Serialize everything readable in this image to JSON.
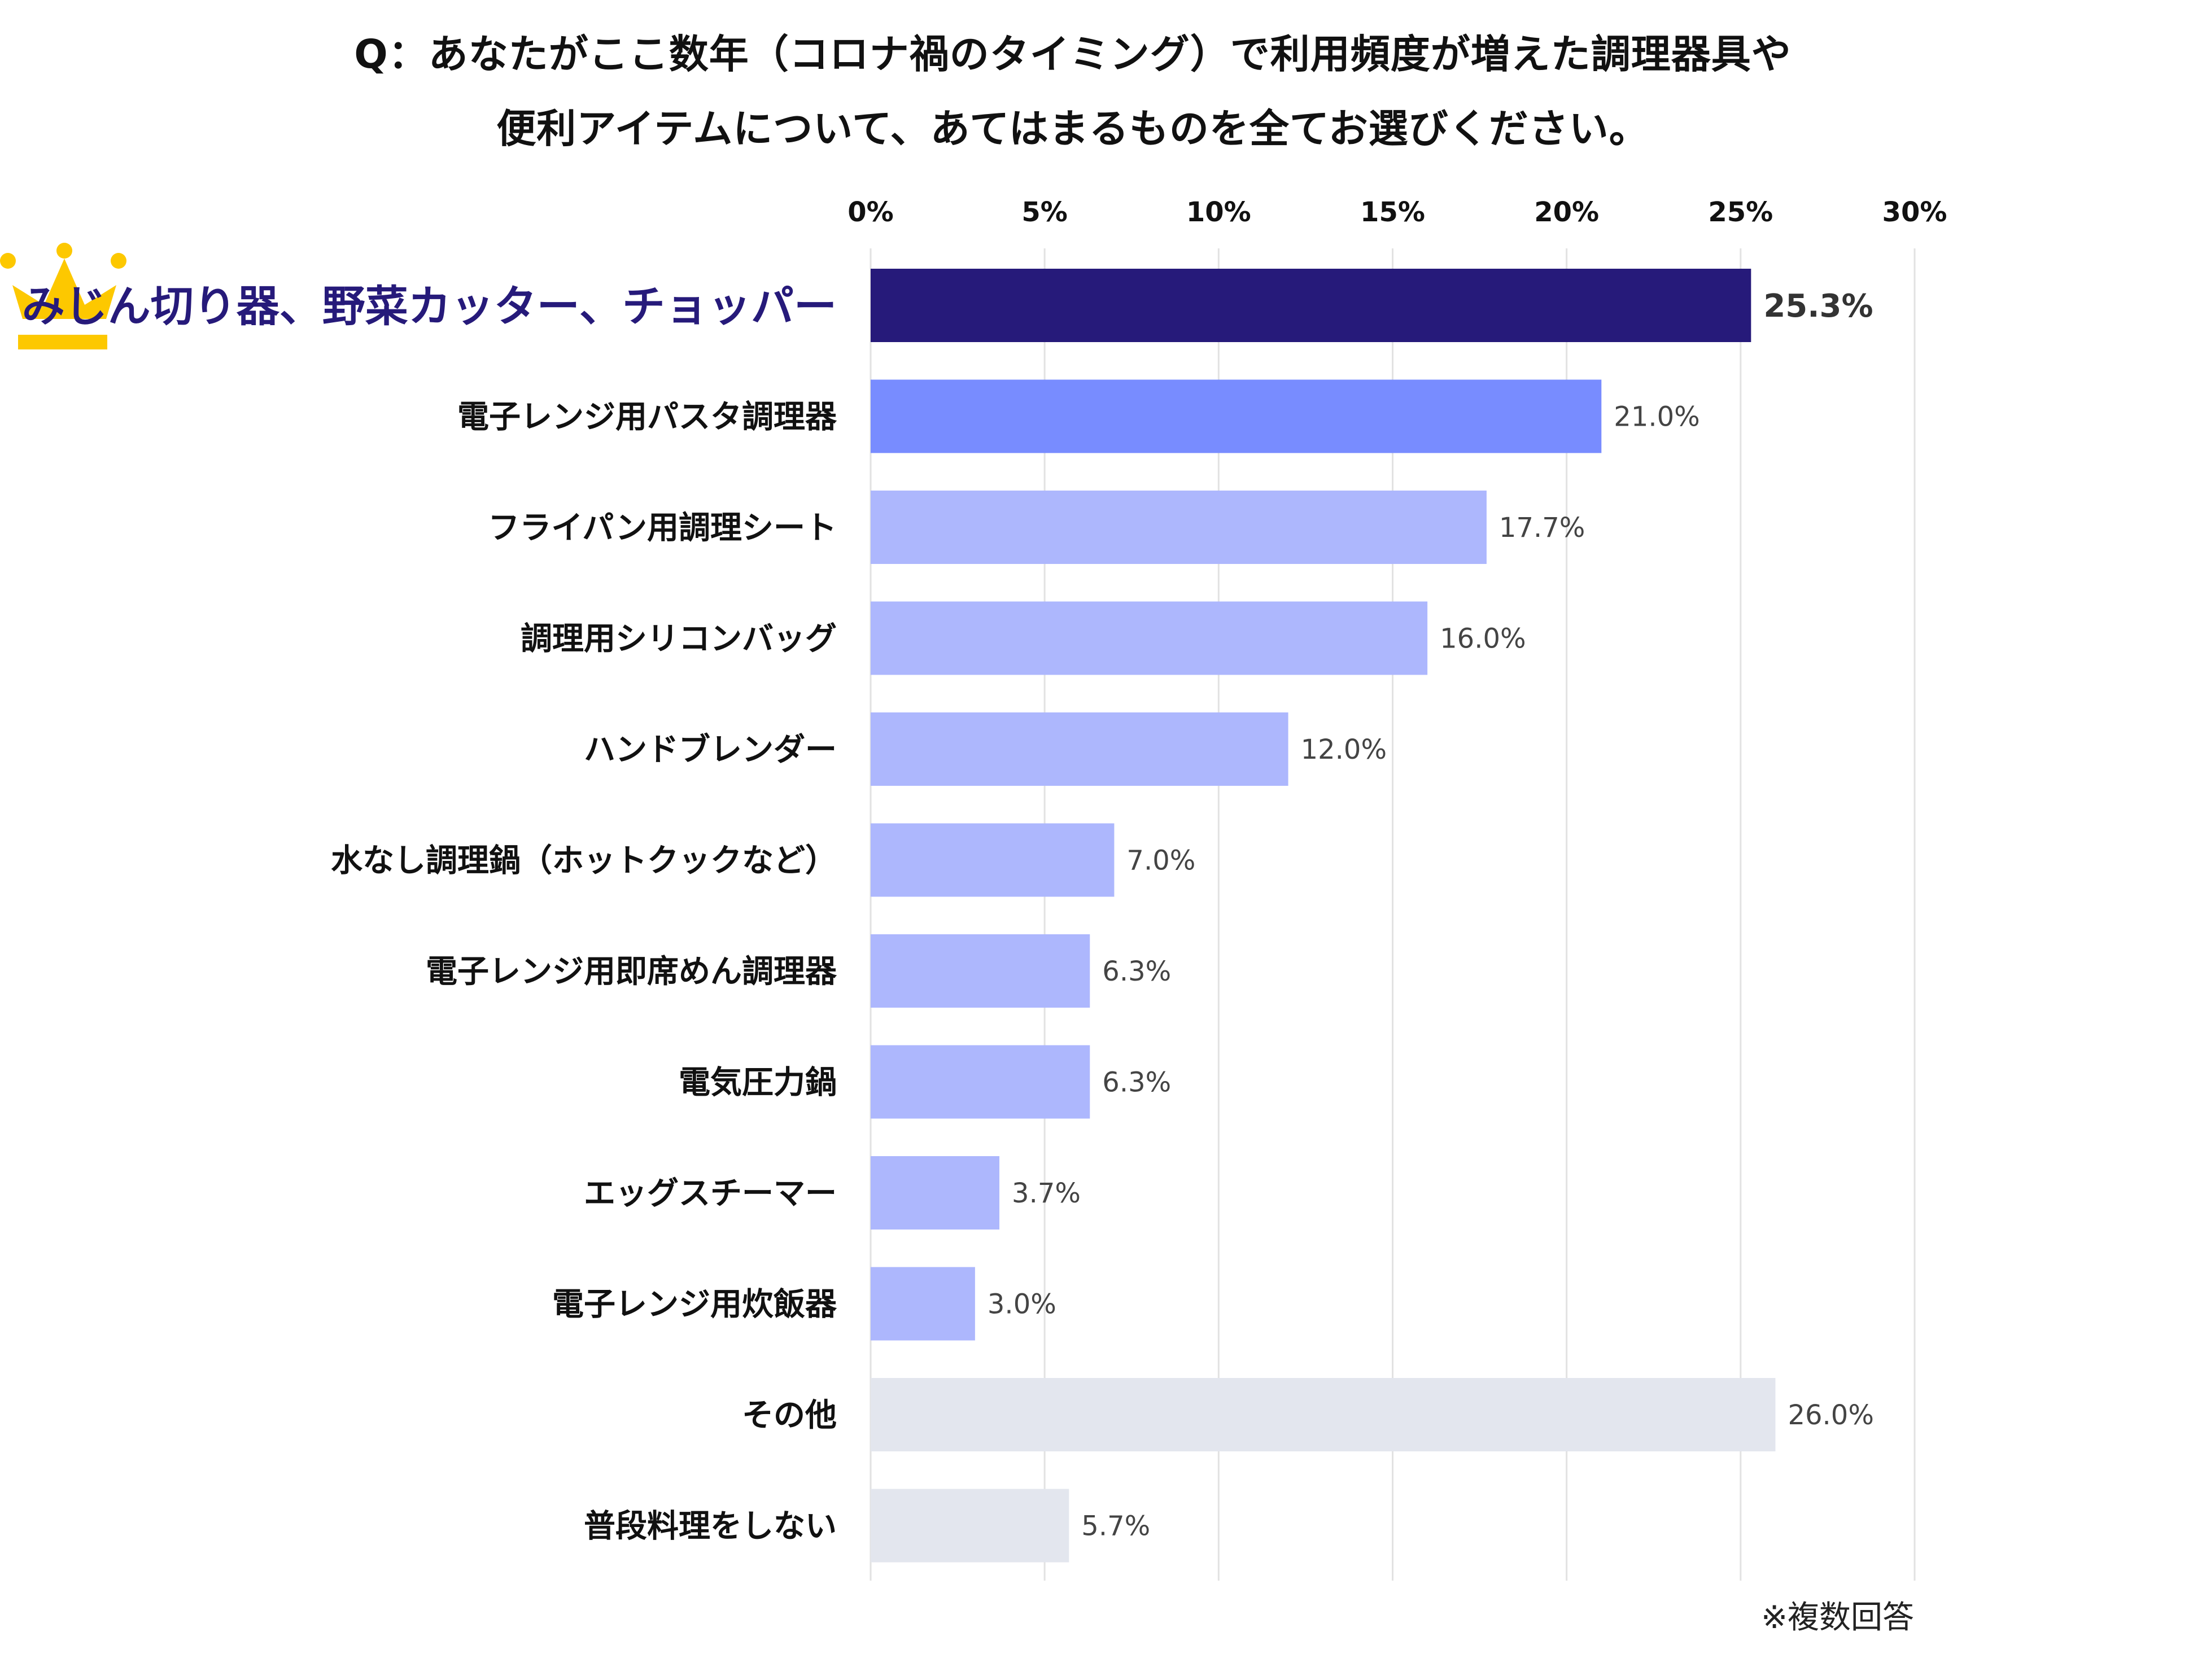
{
  "title_lines": [
    "Q：あなたがここ数年（コロナ禍のタイミング）で利用頻度が増えた調理器具や",
    "便利アイテムについて、あてはまるものを全てお選びください。"
  ],
  "note": "※複数回答",
  "chart_data": {
    "type": "bar",
    "orientation": "horizontal",
    "xlim": [
      0,
      30
    ],
    "ticks": [
      "0%",
      "5%",
      "10%",
      "15%",
      "20%",
      "25%",
      "30%"
    ],
    "tick_values": [
      0,
      5,
      10,
      15,
      20,
      25,
      30
    ],
    "grid": true,
    "categories": [
      "みじん切り器、野菜カッター、チョッパー",
      "電子レンジ用パスタ調理器",
      "フライパン用調理シート",
      "調理用シリコンバッグ",
      "ハンドブレンダー",
      "水なし調理鍋（ホットクックなど）",
      "電子レンジ用即席めん調理器",
      "電気圧力鍋",
      "エッグスチーマー",
      "電子レンジ用炊飯器",
      "その他",
      "普段料理をしない"
    ],
    "values": [
      25.3,
      21.0,
      17.7,
      16.0,
      12.0,
      7.0,
      6.3,
      6.3,
      3.7,
      3.0,
      26.0,
      5.7
    ],
    "value_labels": [
      "25.3%",
      "21.0%",
      "17.7%",
      "16.0%",
      "12.0%",
      "7.0%",
      "6.3%",
      "6.3%",
      "3.7%",
      "3.0%",
      "26.0%",
      "5.7%"
    ],
    "colors": [
      "#261a7a",
      "#788cff",
      "#adb7fd",
      "#adb7fd",
      "#adb7fd",
      "#adb7fd",
      "#adb7fd",
      "#adb7fd",
      "#adb7fd",
      "#adb7fd",
      "#e3e6ee",
      "#e3e6ee"
    ],
    "highlight_color": "#261a7a",
    "crown_color": "#fdc800",
    "highlight_icon": "crown-icon"
  }
}
